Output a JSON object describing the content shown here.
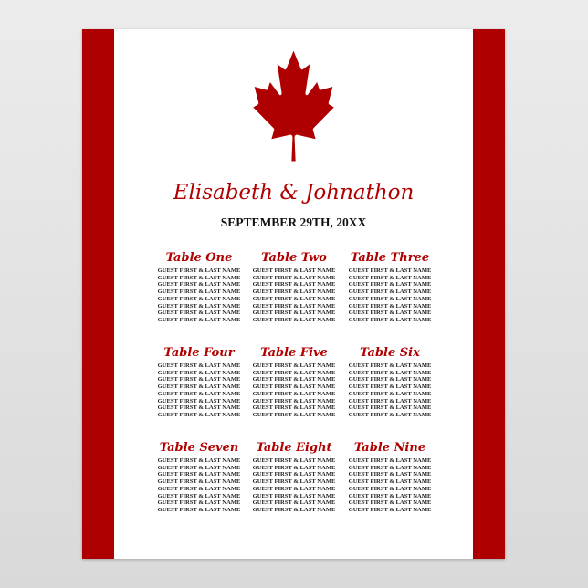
{
  "colors": {
    "red": "#ae0000",
    "background": "#ffffff"
  },
  "emblem": "maple-leaf",
  "names": "Elisabeth & Johnathon",
  "date": "SEPTEMBER 29TH, 20XX",
  "tables": [
    {
      "title": "Table One",
      "guests": [
        "GUEST FIRST & LAST NAME",
        "GUEST FIRST & LAST NAME",
        "GUEST FIRST & LAST NAME",
        "GUEST FIRST & LAST NAME",
        "GUEST FIRST & LAST NAME",
        "GUEST FIRST & LAST NAME",
        "GUEST FIRST & LAST NAME",
        "GUEST FIRST & LAST NAME"
      ]
    },
    {
      "title": "Table Two",
      "guests": [
        "GUEST FIRST & LAST NAME",
        "GUEST FIRST & LAST NAME",
        "GUEST FIRST & LAST NAME",
        "GUEST FIRST & LAST NAME",
        "GUEST FIRST & LAST NAME",
        "GUEST FIRST & LAST NAME",
        "GUEST FIRST & LAST NAME",
        "GUEST FIRST & LAST NAME"
      ]
    },
    {
      "title": "Table Three",
      "guests": [
        "GUEST FIRST & LAST NAME",
        "GUEST FIRST & LAST NAME",
        "GUEST FIRST & LAST NAME",
        "GUEST FIRST & LAST NAME",
        "GUEST FIRST & LAST NAME",
        "GUEST FIRST & LAST NAME",
        "GUEST FIRST & LAST NAME",
        "GUEST FIRST & LAST NAME"
      ]
    },
    {
      "title": "Table Four",
      "guests": [
        "GUEST FIRST & LAST NAME",
        "GUEST FIRST & LAST NAME",
        "GUEST FIRST & LAST NAME",
        "GUEST FIRST & LAST NAME",
        "GUEST FIRST & LAST NAME",
        "GUEST FIRST & LAST NAME",
        "GUEST FIRST & LAST NAME",
        "GUEST FIRST & LAST NAME"
      ]
    },
    {
      "title": "Table Five",
      "guests": [
        "GUEST FIRST & LAST NAME",
        "GUEST FIRST & LAST NAME",
        "GUEST FIRST & LAST NAME",
        "GUEST FIRST & LAST NAME",
        "GUEST FIRST & LAST NAME",
        "GUEST FIRST & LAST NAME",
        "GUEST FIRST & LAST NAME",
        "GUEST FIRST & LAST NAME"
      ]
    },
    {
      "title": "Table Six",
      "guests": [
        "GUEST FIRST & LAST NAME",
        "GUEST FIRST & LAST NAME",
        "GUEST FIRST & LAST NAME",
        "GUEST FIRST & LAST NAME",
        "GUEST FIRST & LAST NAME",
        "GUEST FIRST & LAST NAME",
        "GUEST FIRST & LAST NAME",
        "GUEST FIRST & LAST NAME"
      ]
    },
    {
      "title": "Table Seven",
      "guests": [
        "GUEST FIRST & LAST NAME",
        "GUEST FIRST & LAST NAME",
        "GUEST FIRST & LAST NAME",
        "GUEST FIRST & LAST NAME",
        "GUEST FIRST & LAST NAME",
        "GUEST FIRST & LAST NAME",
        "GUEST FIRST & LAST NAME",
        "GUEST FIRST & LAST NAME"
      ]
    },
    {
      "title": "Table Eight",
      "guests": [
        "GUEST FIRST & LAST NAME",
        "GUEST FIRST & LAST NAME",
        "GUEST FIRST & LAST NAME",
        "GUEST FIRST & LAST NAME",
        "GUEST FIRST & LAST NAME",
        "GUEST FIRST & LAST NAME",
        "GUEST FIRST & LAST NAME",
        "GUEST FIRST & LAST NAME"
      ]
    },
    {
      "title": "Table Nine",
      "guests": [
        "GUEST FIRST & LAST NAME",
        "GUEST FIRST & LAST NAME",
        "GUEST FIRST & LAST NAME",
        "GUEST FIRST & LAST NAME",
        "GUEST FIRST & LAST NAME",
        "GUEST FIRST & LAST NAME",
        "GUEST FIRST & LAST NAME",
        "GUEST FIRST & LAST NAME"
      ]
    }
  ]
}
